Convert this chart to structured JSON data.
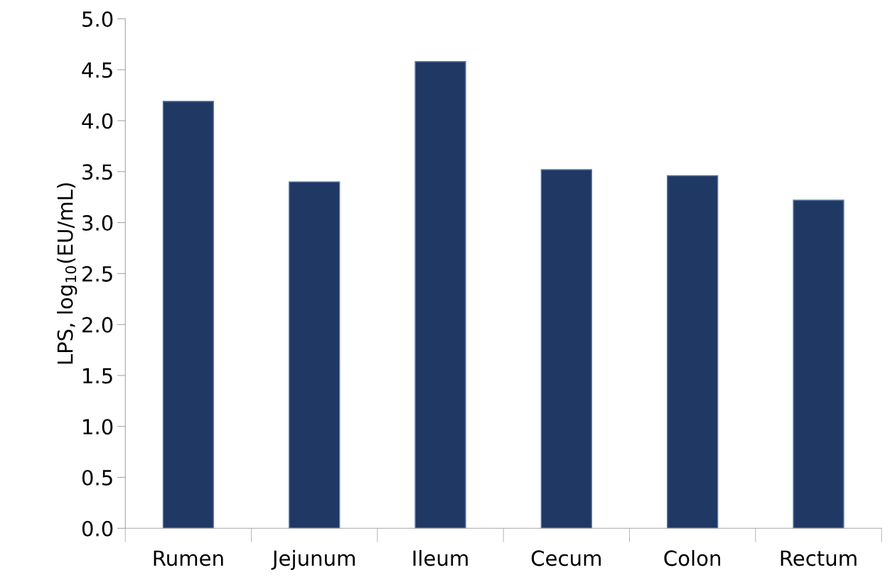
{
  "chart_data": {
    "type": "bar",
    "ylabel": "LPS, log$_{10}$(EU/mL)",
    "categories": [
      "Rumen",
      "Jejunum",
      "Ileum",
      "Cecum",
      "Colon",
      "Rectum"
    ],
    "values": [
      4.19,
      3.4,
      4.58,
      3.52,
      3.46,
      3.22
    ],
    "color": "#203864",
    "ylim": [
      0,
      5
    ],
    "yticks": [
      {
        "value": 0,
        "label": "0.0"
      },
      0.5,
      {
        "value": 1,
        "label": "1.0"
      },
      1.5,
      {
        "value": 2,
        "label": "2.0"
      },
      2.5,
      {
        "value": 3,
        "label": "3.0"
      },
      3.5,
      {
        "value": 4,
        "label": "4.0"
      },
      4.5,
      {
        "value": 5,
        "label": "5.0"
      }
    ],
    "grid": false,
    "legend": false
  }
}
